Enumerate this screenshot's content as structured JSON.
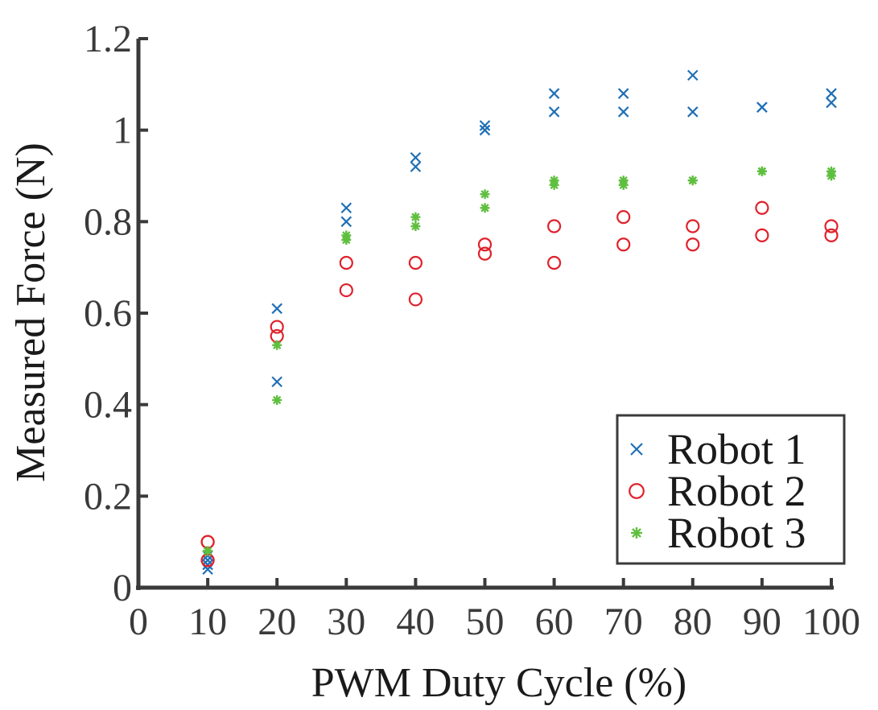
{
  "chart_data": {
    "type": "scatter",
    "xlabel": "PWM Duty Cycle (%)",
    "ylabel": "Measured Force (N)",
    "xlim": [
      0,
      100
    ],
    "ylim": [
      0,
      1.2
    ],
    "xticks": [
      "0",
      "10",
      "20",
      "30",
      "40",
      "50",
      "60",
      "70",
      "80",
      "90",
      "100"
    ],
    "yticks": [
      "0",
      "0.2",
      "0.4",
      "0.6",
      "0.8",
      "1",
      "1.2"
    ],
    "grid": false,
    "legend_position": "bottom-right",
    "series": [
      {
        "name": "Robot 1",
        "marker": "x",
        "color": "#1f6fb5",
        "points": [
          [
            10,
            0.04
          ],
          [
            10,
            0.05
          ],
          [
            10,
            0.06
          ],
          [
            10,
            0.07
          ],
          [
            20,
            0.61
          ],
          [
            20,
            0.45
          ],
          [
            30,
            0.83
          ],
          [
            30,
            0.8
          ],
          [
            40,
            0.94
          ],
          [
            40,
            0.92
          ],
          [
            50,
            1.01
          ],
          [
            50,
            1.0
          ],
          [
            60,
            1.08
          ],
          [
            60,
            1.04
          ],
          [
            70,
            1.08
          ],
          [
            70,
            1.04
          ],
          [
            80,
            1.12
          ],
          [
            80,
            1.04
          ],
          [
            90,
            1.05
          ],
          [
            90,
            1.05
          ],
          [
            100,
            1.08
          ],
          [
            100,
            1.06
          ]
        ]
      },
      {
        "name": "Robot 2",
        "marker": "circle",
        "color": "#e0212b",
        "points": [
          [
            10,
            0.1
          ],
          [
            10,
            0.1
          ],
          [
            10,
            0.06
          ],
          [
            10,
            0.06
          ],
          [
            20,
            0.57
          ],
          [
            20,
            0.55
          ],
          [
            30,
            0.71
          ],
          [
            30,
            0.65
          ],
          [
            40,
            0.71
          ],
          [
            40,
            0.63
          ],
          [
            50,
            0.75
          ],
          [
            50,
            0.73
          ],
          [
            60,
            0.79
          ],
          [
            60,
            0.71
          ],
          [
            70,
            0.81
          ],
          [
            70,
            0.75
          ],
          [
            80,
            0.79
          ],
          [
            80,
            0.75
          ],
          [
            90,
            0.83
          ],
          [
            90,
            0.77
          ],
          [
            100,
            0.79
          ],
          [
            100,
            0.77
          ]
        ]
      },
      {
        "name": "Robot 3",
        "marker": "asterisk",
        "color": "#5fbf3f",
        "points": [
          [
            10,
            0.08
          ],
          [
            10,
            0.08
          ],
          [
            10,
            0.08
          ],
          [
            20,
            0.53
          ],
          [
            20,
            0.41
          ],
          [
            30,
            0.77
          ],
          [
            30,
            0.76
          ],
          [
            40,
            0.81
          ],
          [
            40,
            0.79
          ],
          [
            50,
            0.86
          ],
          [
            50,
            0.83
          ],
          [
            60,
            0.89
          ],
          [
            60,
            0.88
          ],
          [
            70,
            0.89
          ],
          [
            70,
            0.88
          ],
          [
            80,
            0.89
          ],
          [
            80,
            0.89
          ],
          [
            90,
            0.91
          ],
          [
            90,
            0.91
          ],
          [
            100,
            0.91
          ],
          [
            100,
            0.9
          ]
        ]
      }
    ]
  }
}
